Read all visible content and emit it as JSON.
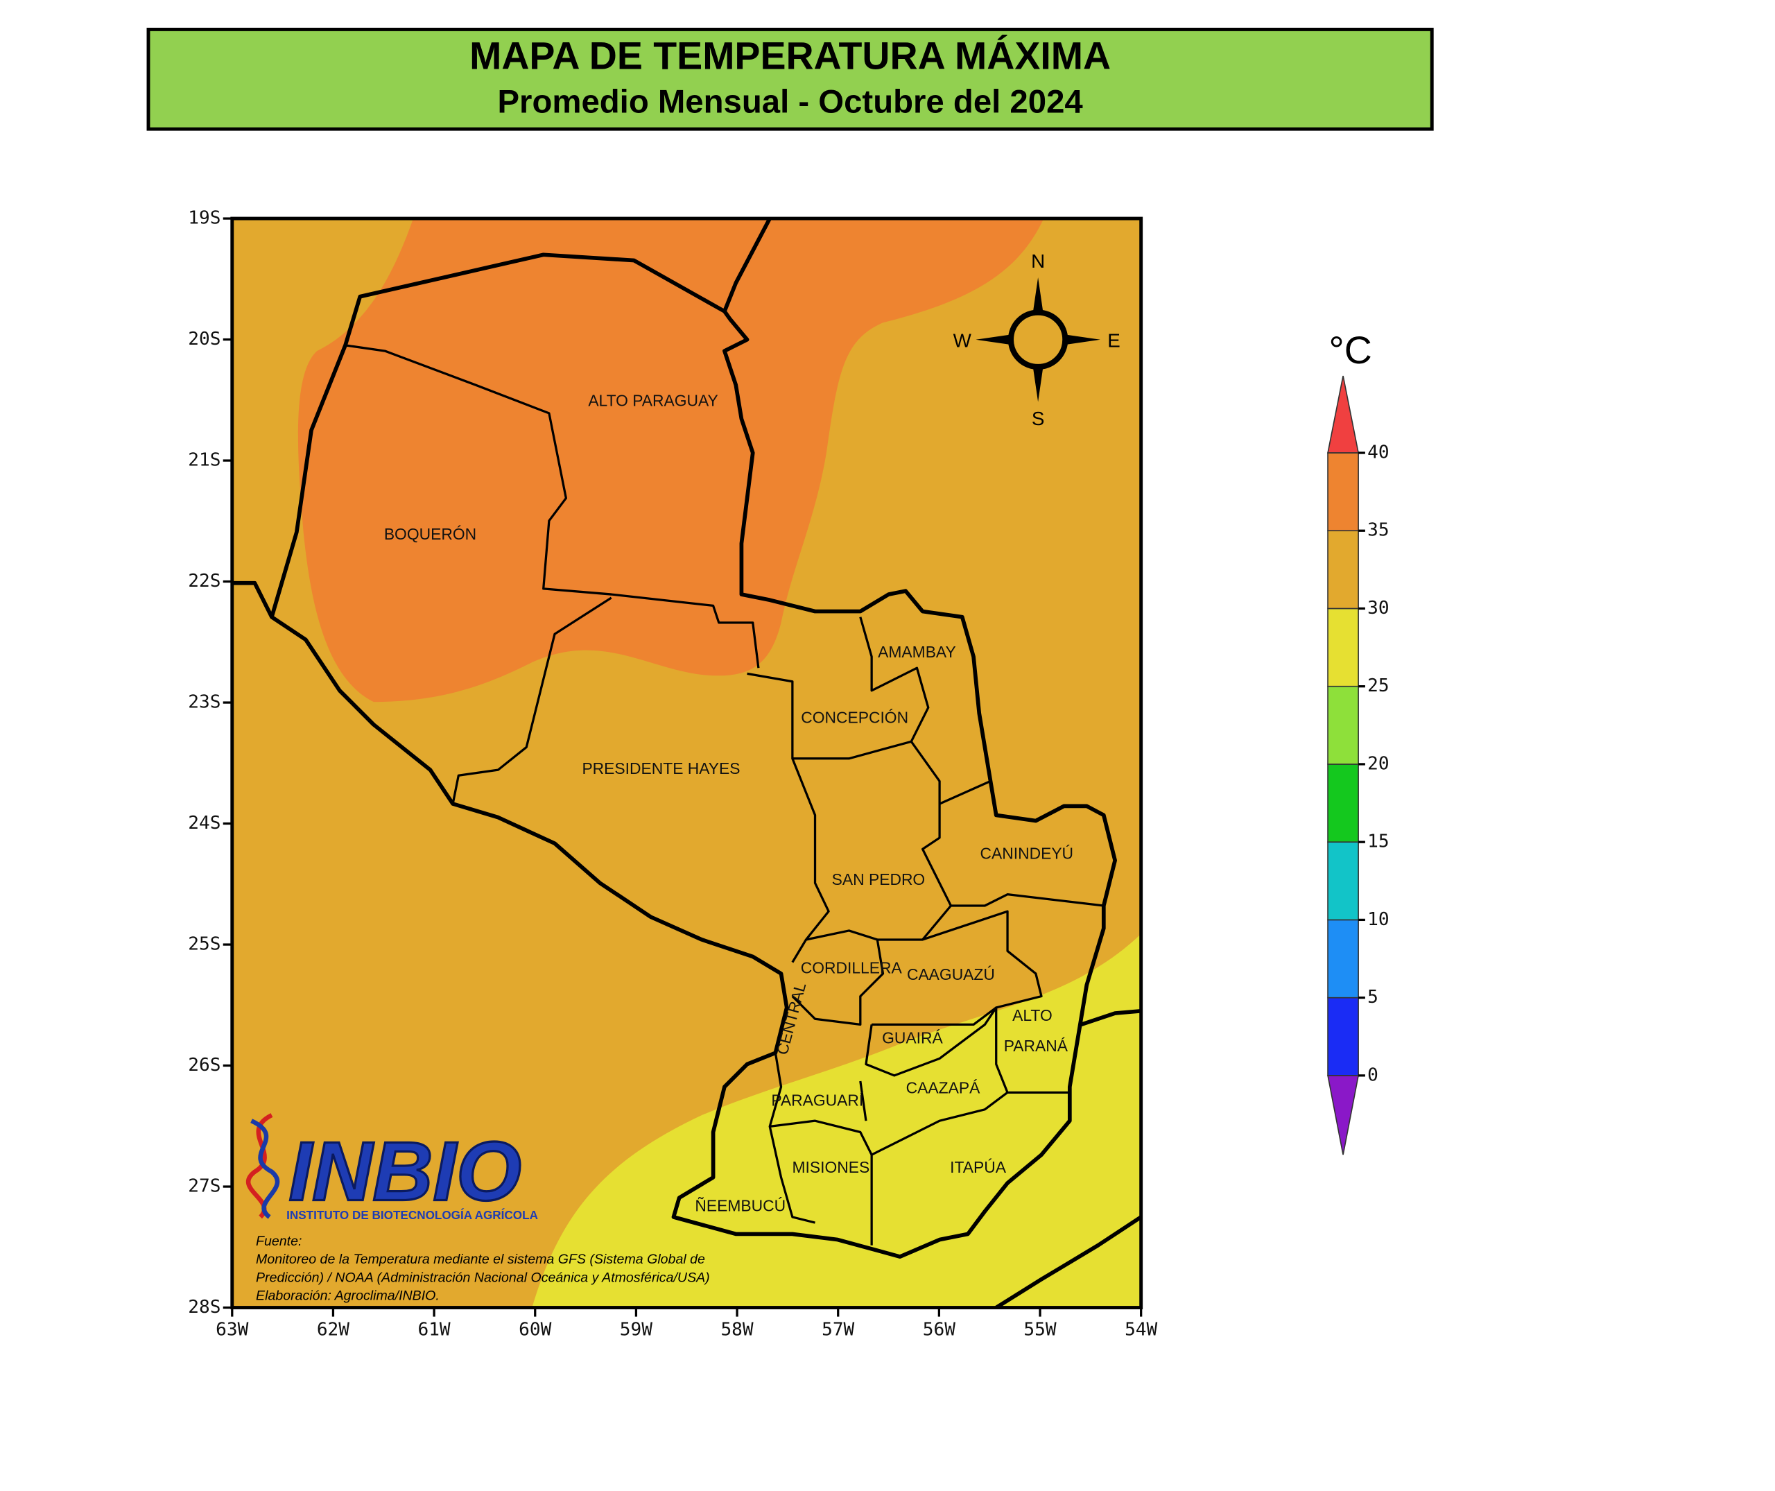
{
  "header": {
    "title": "MAPA DE TEMPERATURA MÁXIMA",
    "subtitle": "Promedio Mensual - Octubre del 2024"
  },
  "map": {
    "lat_labels": [
      "19S",
      "20S",
      "21S",
      "22S",
      "23S",
      "24S",
      "25S",
      "26S",
      "27S",
      "28S"
    ],
    "lon_labels": [
      "63W",
      "62W",
      "61W",
      "60W",
      "59W",
      "58W",
      "57W",
      "56W",
      "55W",
      "54W"
    ],
    "regions": [
      "ALTO PARAGUAY",
      "BOQUERÓN",
      "PRESIDENTE HAYES",
      "AMAMBAY",
      "CONCEPCIÓN",
      "SAN PEDRO",
      "CANINDEYÚ",
      "CORDILLERA",
      "CAAGUAZÚ",
      "ALTO",
      "PARANÁ",
      "GUAIRÁ",
      "CAAZAPÁ",
      "PARAGUARÍ",
      "CENTRAL",
      "MISIONES",
      "ITAPÚA",
      "ÑEEMBUCÚ"
    ],
    "compass": [
      "N",
      "E",
      "S",
      "W"
    ]
  },
  "legend": {
    "unit": "°C",
    "ticks": [
      0,
      5,
      10,
      15,
      20,
      25,
      30,
      35,
      40
    ],
    "colors": [
      "#8a18c8",
      "#1a2cf5",
      "#1e8ef5",
      "#12c4c8",
      "#14c81e",
      "#8ee03a",
      "#e6e032",
      "#e2a92e",
      "#ee8430",
      "#f04040"
    ]
  },
  "logo": {
    "name": "INBIO",
    "subtitle": "INSTITUTO DE BIOTECNOLOGÍA AGRÍCOLA"
  },
  "source": [
    "Fuente:",
    "Monitoreo de la Temperatura mediante el sistema GFS (Sistema Global de",
    "Predicción) / NOAA (Administración Nacional Oceánica y Atmosférica/USA)",
    "Elaboración: Agroclima/INBIO."
  ]
}
